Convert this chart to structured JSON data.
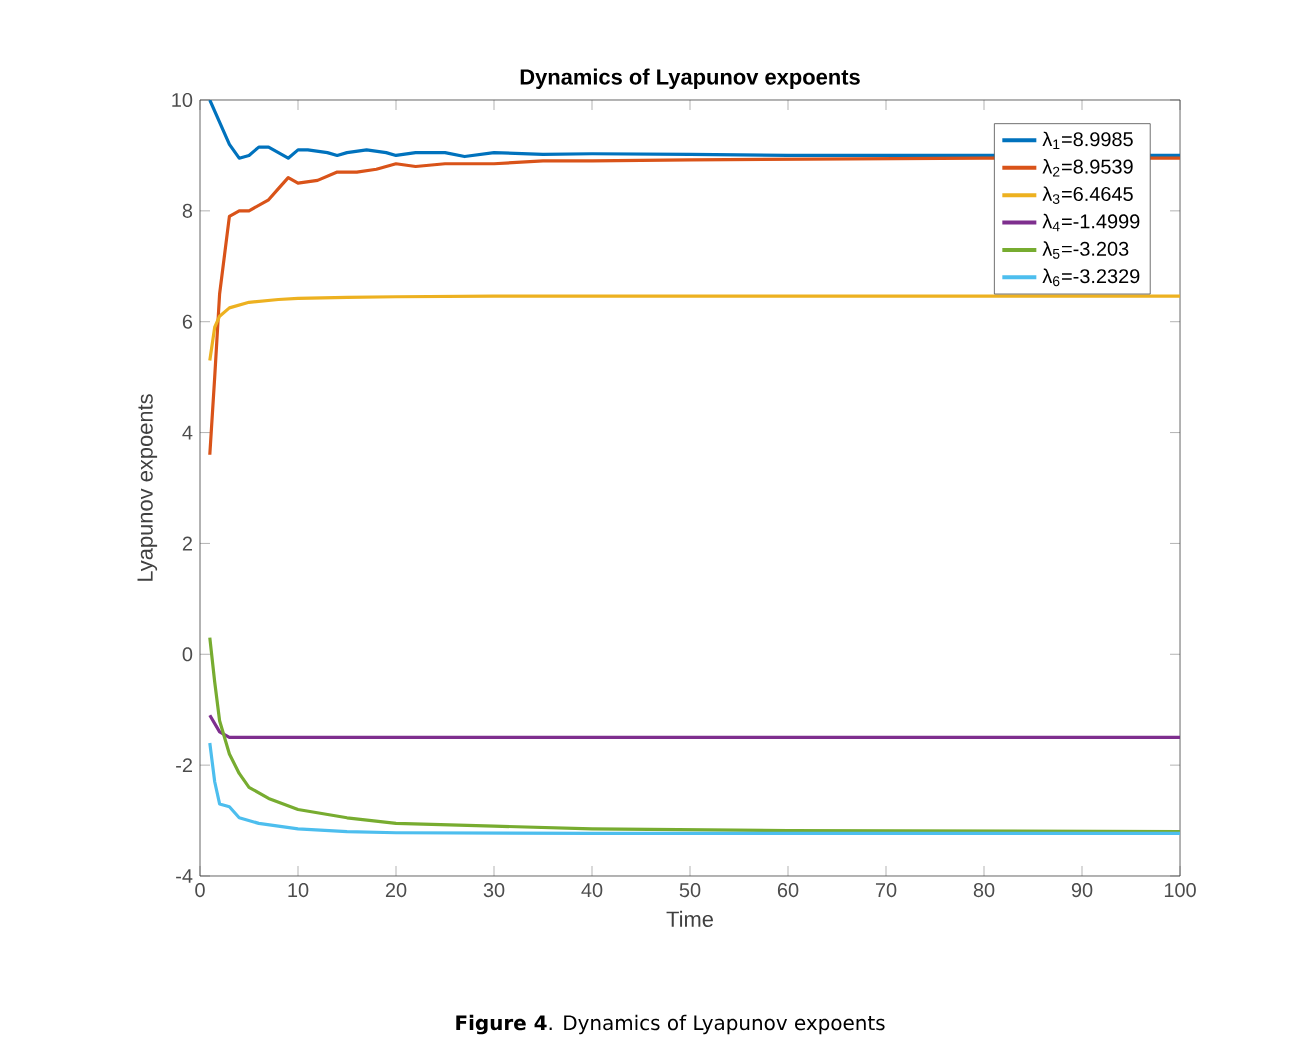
{
  "chart_data": {
    "type": "line",
    "title": "Dynamics of Lyapunov expoents",
    "xlabel": "Time",
    "ylabel": "Lyapunov expoents",
    "annotations": [
      "**Figure 4**. Dynamics of Lyapunov expoents"
    ],
    "xlim": [
      0,
      100
    ],
    "ylim": [
      -4,
      10
    ],
    "xticks": [
      0,
      10,
      20,
      30,
      40,
      50,
      60,
      70,
      80,
      90,
      100
    ],
    "yticks": [
      -4,
      -2,
      0,
      2,
      4,
      6,
      8,
      10
    ],
    "legend": "top right",
    "series": [
      {
        "name": "λ$_{1}$=8.9985",
        "color": "#0072bd",
        "x": [
          1,
          2,
          3,
          4,
          5,
          6,
          7,
          8,
          9,
          10,
          11,
          13,
          14,
          15,
          17,
          19,
          20,
          22,
          25,
          27,
          30,
          35,
          40,
          50,
          60,
          70,
          80,
          100
        ],
        "values": [
          10,
          9.6,
          9.2,
          8.95,
          9.0,
          9.15,
          9.15,
          9.05,
          8.95,
          9.1,
          9.1,
          9.05,
          9.0,
          9.05,
          9.1,
          9.05,
          9.0,
          9.05,
          9.05,
          8.98,
          9.05,
          9.02,
          9.03,
          9.02,
          9.0,
          9.0,
          9.0,
          9.0
        ]
      },
      {
        "name": "λ$_{2}$=8.9539",
        "color": "#d95319",
        "x": [
          1,
          1.5,
          2,
          3,
          4,
          5,
          7,
          8,
          9,
          10,
          12,
          14,
          16,
          18,
          20,
          22,
          25,
          30,
          35,
          40,
          50,
          60,
          80,
          100
        ],
        "values": [
          3.6,
          5,
          6.5,
          7.9,
          8.0,
          8.0,
          8.2,
          8.4,
          8.6,
          8.5,
          8.55,
          8.7,
          8.7,
          8.75,
          8.85,
          8.8,
          8.85,
          8.85,
          8.9,
          8.9,
          8.92,
          8.93,
          8.95,
          8.95
        ]
      },
      {
        "name": "λ$_{3}$=6.4645",
        "color": "#edb120",
        "x": [
          1,
          1.5,
          2,
          3,
          5,
          8,
          10,
          15,
          20,
          30,
          50,
          100
        ],
        "values": [
          5.3,
          5.9,
          6.1,
          6.25,
          6.35,
          6.4,
          6.42,
          6.44,
          6.45,
          6.46,
          6.46,
          6.46
        ]
      },
      {
        "name": "λ$_{4}$=-1.4999",
        "color": "#7e2f8e",
        "x": [
          1,
          2,
          3,
          100
        ],
        "values": [
          -1.1,
          -1.4,
          -1.5,
          -1.5
        ]
      },
      {
        "name": "λ$_{5}$=-3.203",
        "color": "#77ac30",
        "x": [
          1,
          1.5,
          2,
          3,
          4,
          5,
          7,
          10,
          15,
          20,
          30,
          40,
          60,
          100
        ],
        "values": [
          0.3,
          -0.5,
          -1.2,
          -1.8,
          -2.15,
          -2.4,
          -2.6,
          -2.8,
          -2.95,
          -3.05,
          -3.1,
          -3.15,
          -3.18,
          -3.2
        ]
      },
      {
        "name": "λ$_{6}$=-3.2329",
        "color": "#4dbeee",
        "x": [
          1,
          1.5,
          2,
          3,
          4,
          6,
          8,
          10,
          15,
          20,
          40,
          100
        ],
        "values": [
          -1.6,
          -2.3,
          -2.7,
          -2.75,
          -2.95,
          -3.05,
          -3.1,
          -3.15,
          -3.2,
          -3.22,
          -3.23,
          -3.23
        ]
      }
    ]
  }
}
